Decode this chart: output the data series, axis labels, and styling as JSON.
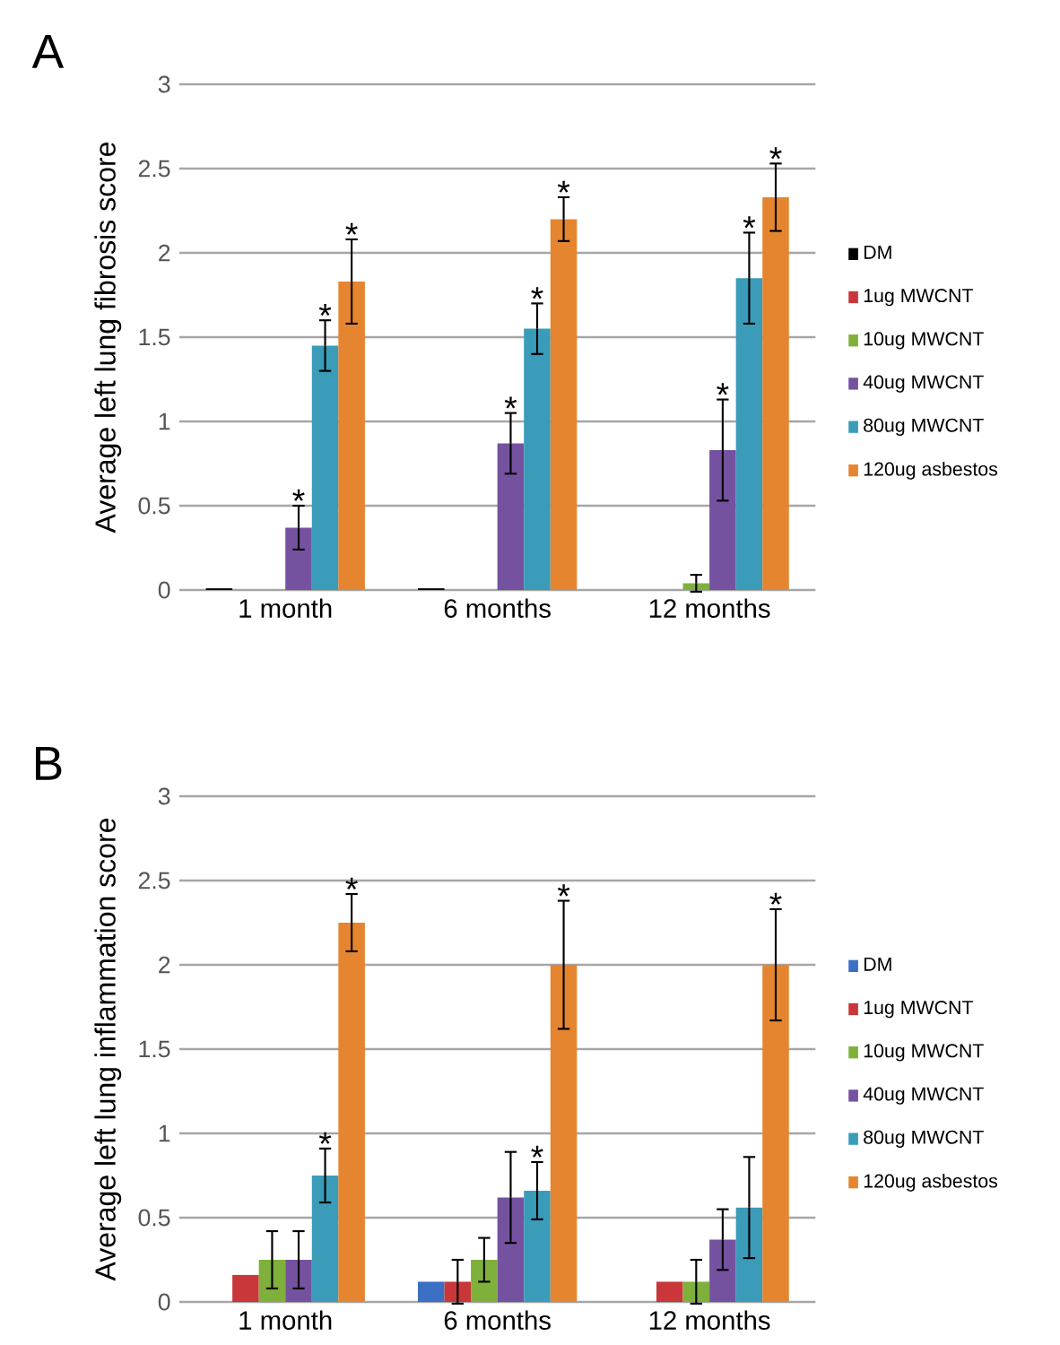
{
  "chart_data": [
    {
      "type": "bar",
      "title": "A",
      "ylabel": "Average left lung fibrosis score",
      "categories": [
        "1 month",
        "6 months",
        "12 months"
      ],
      "series": [
        {
          "name": "DM",
          "color": "#000000",
          "values": [
            0.01,
            0.01,
            null
          ]
        },
        {
          "name": "1ug MWCNT",
          "color": "#c9373a",
          "values": [
            null,
            null,
            null
          ]
        },
        {
          "name": "10ug MWCNT",
          "color": "#7fb03c",
          "values": [
            null,
            null,
            0.04
          ],
          "errors": [
            null,
            null,
            0.05
          ]
        },
        {
          "name": "40ug MWCNT",
          "color": "#7552a0",
          "values": [
            0.37,
            0.87,
            0.83
          ],
          "errors": [
            0.13,
            0.18,
            0.3
          ],
          "value_labels": [
            "*",
            "*",
            "*"
          ]
        },
        {
          "name": "80ug MWCNT",
          "color": "#3a9cb8",
          "values": [
            1.45,
            1.55,
            1.85
          ],
          "errors": [
            0.15,
            0.15,
            0.27
          ],
          "value_labels": [
            "*",
            "*",
            "*"
          ]
        },
        {
          "name": "120ug asbestos",
          "color": "#e6852f",
          "values": [
            1.83,
            2.2,
            2.33
          ],
          "errors": [
            0.25,
            0.13,
            0.2
          ],
          "value_labels": [
            "*",
            "*",
            "*"
          ]
        }
      ],
      "ylim": [
        0,
        3
      ],
      "yticks": [
        0,
        0.5,
        1,
        1.5,
        2,
        2.5,
        3
      ],
      "grid": "y",
      "legend": "right"
    },
    {
      "type": "bar",
      "title": "B",
      "ylabel": "Average left lung inflammation score",
      "categories": [
        "1 month",
        "6 months",
        "12 months"
      ],
      "series": [
        {
          "name": "DM",
          "color": "#3a6fc4",
          "values": [
            null,
            0.12,
            null
          ]
        },
        {
          "name": "1ug MWCNT",
          "color": "#c9373a",
          "values": [
            0.16,
            0.12,
            0.12
          ],
          "errors": [
            null,
            0.13,
            null
          ]
        },
        {
          "name": "10ug MWCNT",
          "color": "#7fb03c",
          "values": [
            0.25,
            0.25,
            0.12
          ],
          "errors": [
            0.17,
            0.13,
            0.13
          ]
        },
        {
          "name": "40ug MWCNT",
          "color": "#7552a0",
          "values": [
            0.25,
            0.62,
            0.37
          ],
          "errors": [
            0.17,
            0.27,
            0.18
          ]
        },
        {
          "name": "80ug MWCNT",
          "color": "#3a9cb8",
          "values": [
            0.75,
            0.66,
            0.56
          ],
          "errors": [
            0.16,
            0.17,
            0.3
          ],
          "value_labels": [
            "*",
            "*",
            null
          ]
        },
        {
          "name": "120ug asbestos",
          "color": "#e6852f",
          "values": [
            2.25,
            2.0,
            2.0
          ],
          "errors": [
            0.17,
            0.38,
            0.33
          ],
          "value_labels": [
            "*",
            "*",
            "*"
          ]
        }
      ],
      "ylim": [
        0,
        3
      ],
      "yticks": [
        0,
        0.5,
        1,
        1.5,
        2,
        2.5,
        3
      ],
      "grid": "y",
      "legend": "right"
    }
  ]
}
